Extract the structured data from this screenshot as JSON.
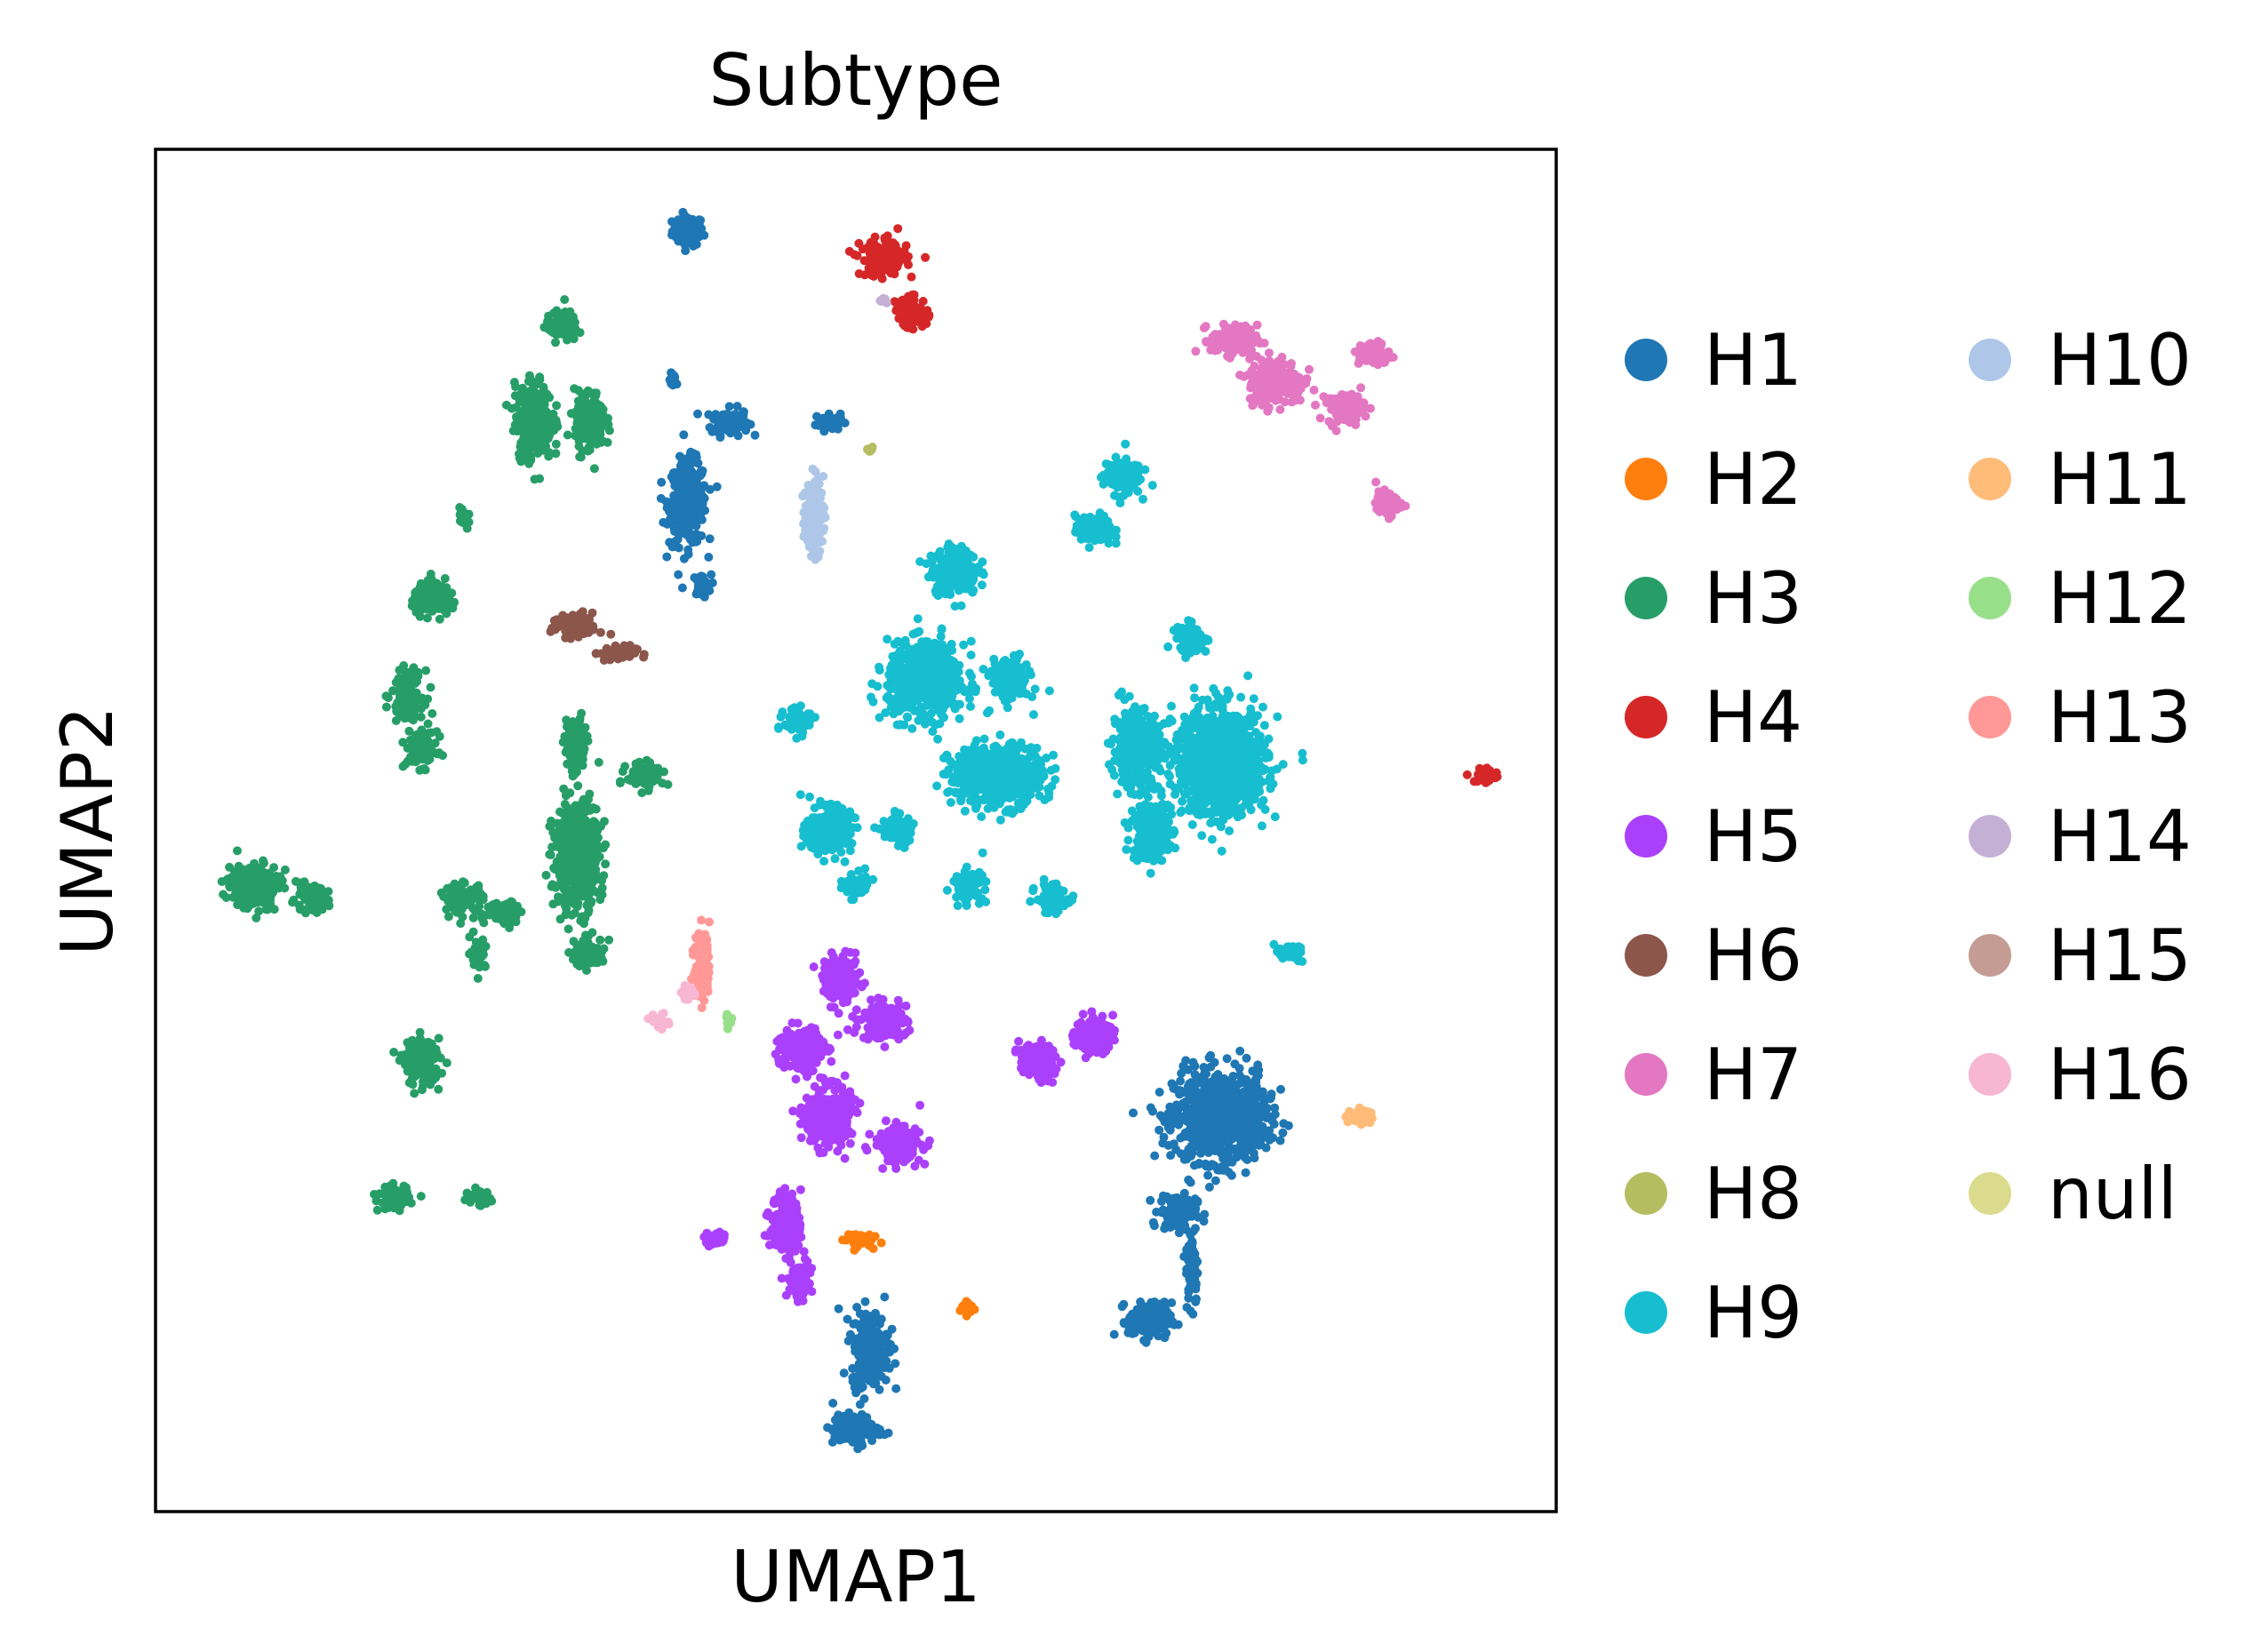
{
  "chart_data": {
    "type": "scatter",
    "title": "Subtype",
    "xlabel": "UMAP1",
    "ylabel": "UMAP2",
    "xlim": [
      0,
      10
    ],
    "ylim": [
      0,
      10
    ],
    "xticks": [],
    "yticks": [],
    "grid": false,
    "legend_placement": "right, outside plot, two columns",
    "legend": [
      {
        "name": "H1",
        "color": "#1f77b4"
      },
      {
        "name": "H2",
        "color": "#ff7f0e"
      },
      {
        "name": "H3",
        "color": "#279e68"
      },
      {
        "name": "H4",
        "color": "#d62728"
      },
      {
        "name": "H5",
        "color": "#aa40fc"
      },
      {
        "name": "H6",
        "color": "#8c564b"
      },
      {
        "name": "H7",
        "color": "#e377c2"
      },
      {
        "name": "H8",
        "color": "#b5bd61"
      },
      {
        "name": "H9",
        "color": "#17becf"
      },
      {
        "name": "H10",
        "color": "#aec7e8"
      },
      {
        "name": "H11",
        "color": "#ffbb78"
      },
      {
        "name": "H12",
        "color": "#98df8a"
      },
      {
        "name": "H13",
        "color": "#ff9896"
      },
      {
        "name": "H14",
        "color": "#c5b0d5"
      },
      {
        "name": "H15",
        "color": "#c49c94"
      },
      {
        "name": "H16",
        "color": "#f7b6d2"
      },
      {
        "name": "null",
        "color": "#dbdb8d"
      }
    ],
    "series": [
      {
        "name": "H1",
        "clusters": [
          [
            3.8,
            9.4,
            0.1,
            0.1
          ],
          [
            3.7,
            8.3,
            0.03,
            0.05
          ],
          [
            4.1,
            8.0,
            0.12,
            0.09
          ],
          [
            4.8,
            8.0,
            0.08,
            0.06
          ],
          [
            3.8,
            7.4,
            0.12,
            0.28
          ],
          [
            3.9,
            6.8,
            0.06,
            0.07
          ],
          [
            7.6,
            2.9,
            0.3,
            0.3
          ],
          [
            7.3,
            2.2,
            0.12,
            0.12
          ],
          [
            7.1,
            1.4,
            0.14,
            0.12
          ],
          [
            7.4,
            1.8,
            0.04,
            0.25
          ],
          [
            5.1,
            1.2,
            0.12,
            0.25
          ],
          [
            5.0,
            0.6,
            0.15,
            0.1
          ]
        ]
      },
      {
        "name": "H2",
        "clusters": [
          [
            5.0,
            2.0,
            0.1,
            0.05
          ],
          [
            5.8,
            1.5,
            0.05,
            0.05
          ]
        ]
      },
      {
        "name": "H3",
        "clusters": [
          [
            2.9,
            8.7,
            0.1,
            0.1
          ],
          [
            2.7,
            8.0,
            0.12,
            0.25
          ],
          [
            3.1,
            8.0,
            0.1,
            0.2
          ],
          [
            2.0,
            6.7,
            0.15,
            0.1
          ],
          [
            2.2,
            7.3,
            0.03,
            0.1
          ],
          [
            1.8,
            6.0,
            0.1,
            0.15
          ],
          [
            1.9,
            5.6,
            0.1,
            0.12
          ],
          [
            3.0,
            5.6,
            0.07,
            0.2
          ],
          [
            3.5,
            5.4,
            0.12,
            0.08
          ],
          [
            3.0,
            4.8,
            0.15,
            0.35
          ],
          [
            0.7,
            4.6,
            0.17,
            0.15
          ],
          [
            1.1,
            4.5,
            0.12,
            0.08
          ],
          [
            2.2,
            4.5,
            0.12,
            0.1
          ],
          [
            2.5,
            4.4,
            0.12,
            0.08
          ],
          [
            2.3,
            4.1,
            0.05,
            0.1
          ],
          [
            3.1,
            4.1,
            0.1,
            0.1
          ],
          [
            1.9,
            3.3,
            0.12,
            0.15
          ],
          [
            1.7,
            2.3,
            0.1,
            0.08
          ],
          [
            2.3,
            2.3,
            0.1,
            0.05
          ]
        ]
      },
      {
        "name": "H4",
        "clusters": [
          [
            5.2,
            9.2,
            0.15,
            0.12
          ],
          [
            5.4,
            8.8,
            0.1,
            0.1
          ],
          [
            9.5,
            5.4,
            0.08,
            0.06
          ]
        ]
      },
      {
        "name": "H5",
        "clusters": [
          [
            4.9,
            3.9,
            0.12,
            0.15
          ],
          [
            5.2,
            3.6,
            0.15,
            0.12
          ],
          [
            4.6,
            3.4,
            0.15,
            0.15
          ],
          [
            4.8,
            2.9,
            0.15,
            0.2
          ],
          [
            5.3,
            2.7,
            0.15,
            0.12
          ],
          [
            6.3,
            3.3,
            0.12,
            0.12
          ],
          [
            6.7,
            3.5,
            0.12,
            0.12
          ],
          [
            4.5,
            2.1,
            0.1,
            0.2
          ],
          [
            4.6,
            1.7,
            0.08,
            0.12
          ],
          [
            4.0,
            2.0,
            0.07,
            0.05
          ]
        ]
      },
      {
        "name": "H6",
        "clusters": [
          [
            3.0,
            6.5,
            0.15,
            0.08
          ],
          [
            3.3,
            6.3,
            0.12,
            0.05
          ]
        ]
      },
      {
        "name": "H7",
        "clusters": [
          [
            7.7,
            8.6,
            0.15,
            0.1
          ],
          [
            8.0,
            8.3,
            0.18,
            0.15
          ],
          [
            8.5,
            8.1,
            0.12,
            0.1
          ],
          [
            8.7,
            8.5,
            0.1,
            0.08
          ],
          [
            8.8,
            7.4,
            0.08,
            0.08
          ]
        ]
      },
      {
        "name": "H8",
        "clusters": [
          [
            5.1,
            7.8,
            0.03,
            0.03
          ]
        ]
      },
      {
        "name": "H9",
        "clusters": [
          [
            6.9,
            7.6,
            0.12,
            0.12
          ],
          [
            6.7,
            7.2,
            0.12,
            0.1
          ],
          [
            5.7,
            6.9,
            0.15,
            0.15
          ],
          [
            5.5,
            6.1,
            0.25,
            0.25
          ],
          [
            6.1,
            6.1,
            0.12,
            0.15
          ],
          [
            4.6,
            5.8,
            0.1,
            0.08
          ],
          [
            6.0,
            5.4,
            0.3,
            0.2
          ],
          [
            7.0,
            5.6,
            0.15,
            0.25
          ],
          [
            7.6,
            5.5,
            0.3,
            0.35
          ],
          [
            7.4,
            6.4,
            0.1,
            0.1
          ],
          [
            7.1,
            5.0,
            0.12,
            0.2
          ],
          [
            4.8,
            5.0,
            0.15,
            0.15
          ],
          [
            5.0,
            4.6,
            0.08,
            0.08
          ],
          [
            5.3,
            5.0,
            0.1,
            0.1
          ],
          [
            5.8,
            4.6,
            0.1,
            0.1
          ],
          [
            6.4,
            4.5,
            0.1,
            0.1
          ],
          [
            8.1,
            4.1,
            0.1,
            0.05
          ]
        ]
      },
      {
        "name": "H10",
        "clusters": [
          [
            4.7,
            7.3,
            0.06,
            0.25
          ]
        ]
      },
      {
        "name": "H11",
        "clusters": [
          [
            8.6,
            2.9,
            0.08,
            0.06
          ]
        ]
      },
      {
        "name": "H12",
        "clusters": [
          [
            4.1,
            3.6,
            0.03,
            0.04
          ]
        ]
      },
      {
        "name": "H13",
        "clusters": [
          [
            3.9,
            4.0,
            0.05,
            0.25
          ]
        ]
      },
      {
        "name": "H14",
        "clusters": [
          [
            5.2,
            8.9,
            0.03,
            0.03
          ]
        ]
      },
      {
        "name": "H15",
        "clusters": []
      },
      {
        "name": "H16",
        "clusters": [
          [
            3.6,
            3.6,
            0.06,
            0.05
          ],
          [
            3.8,
            3.8,
            0.05,
            0.05
          ]
        ]
      },
      {
        "name": "null",
        "clusters": []
      }
    ]
  }
}
